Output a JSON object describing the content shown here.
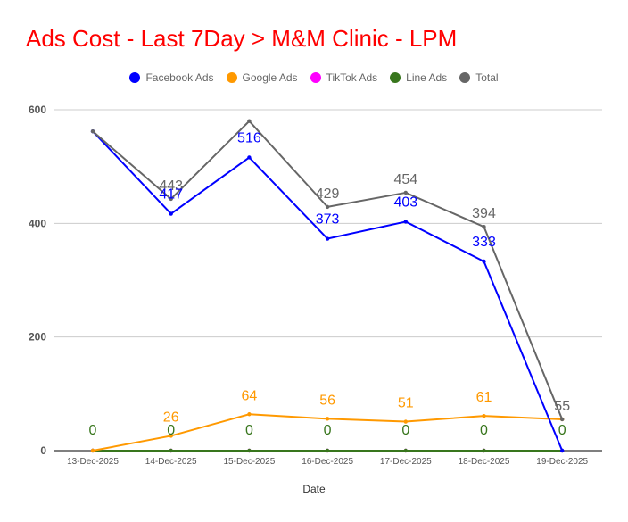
{
  "title": "Ads Cost - Last 7Day > M&M Clinic - LPM",
  "chart_data": {
    "type": "line",
    "title": "Ads Cost - Last 7Day > M&M Clinic - LPM",
    "xlabel": "Date",
    "ylabel": "",
    "ylim": [
      0,
      600
    ],
    "yticks": [
      0,
      200,
      400,
      600
    ],
    "grid": true,
    "legend_position": "top",
    "categories": [
      "13-Dec-2025",
      "14-Dec-2025",
      "15-Dec-2025",
      "16-Dec-2025",
      "17-Dec-2025",
      "18-Dec-2025",
      "19-Dec-2025"
    ],
    "series": [
      {
        "name": "Facebook Ads",
        "color": "#0000ff",
        "values": [
          562,
          417,
          516,
          373,
          403,
          333,
          0
        ],
        "labels": [
          "",
          "417",
          "516",
          "373",
          "403",
          "333",
          ""
        ]
      },
      {
        "name": "Google Ads",
        "color": "#ff9900",
        "values": [
          0,
          26,
          64,
          56,
          51,
          61,
          55
        ],
        "labels": [
          "",
          "26",
          "64",
          "56",
          "51",
          "61",
          ""
        ]
      },
      {
        "name": "TikTok Ads",
        "color": "#ff00ff",
        "values": [
          0,
          0,
          0,
          0,
          0,
          0,
          0
        ],
        "labels": [
          "",
          "",
          "",
          "",
          "",
          "",
          ""
        ]
      },
      {
        "name": "Line Ads",
        "color": "#38761d",
        "values": [
          0,
          0,
          0,
          0,
          0,
          0,
          0
        ],
        "labels": [
          "0",
          "0",
          "0",
          "0",
          "0",
          "0",
          "0"
        ]
      },
      {
        "name": "Total",
        "color": "#666666",
        "values": [
          562,
          443,
          580,
          429,
          454,
          394,
          55
        ],
        "labels": [
          "",
          "443",
          "",
          "429",
          "454",
          "394",
          "55"
        ]
      }
    ]
  }
}
